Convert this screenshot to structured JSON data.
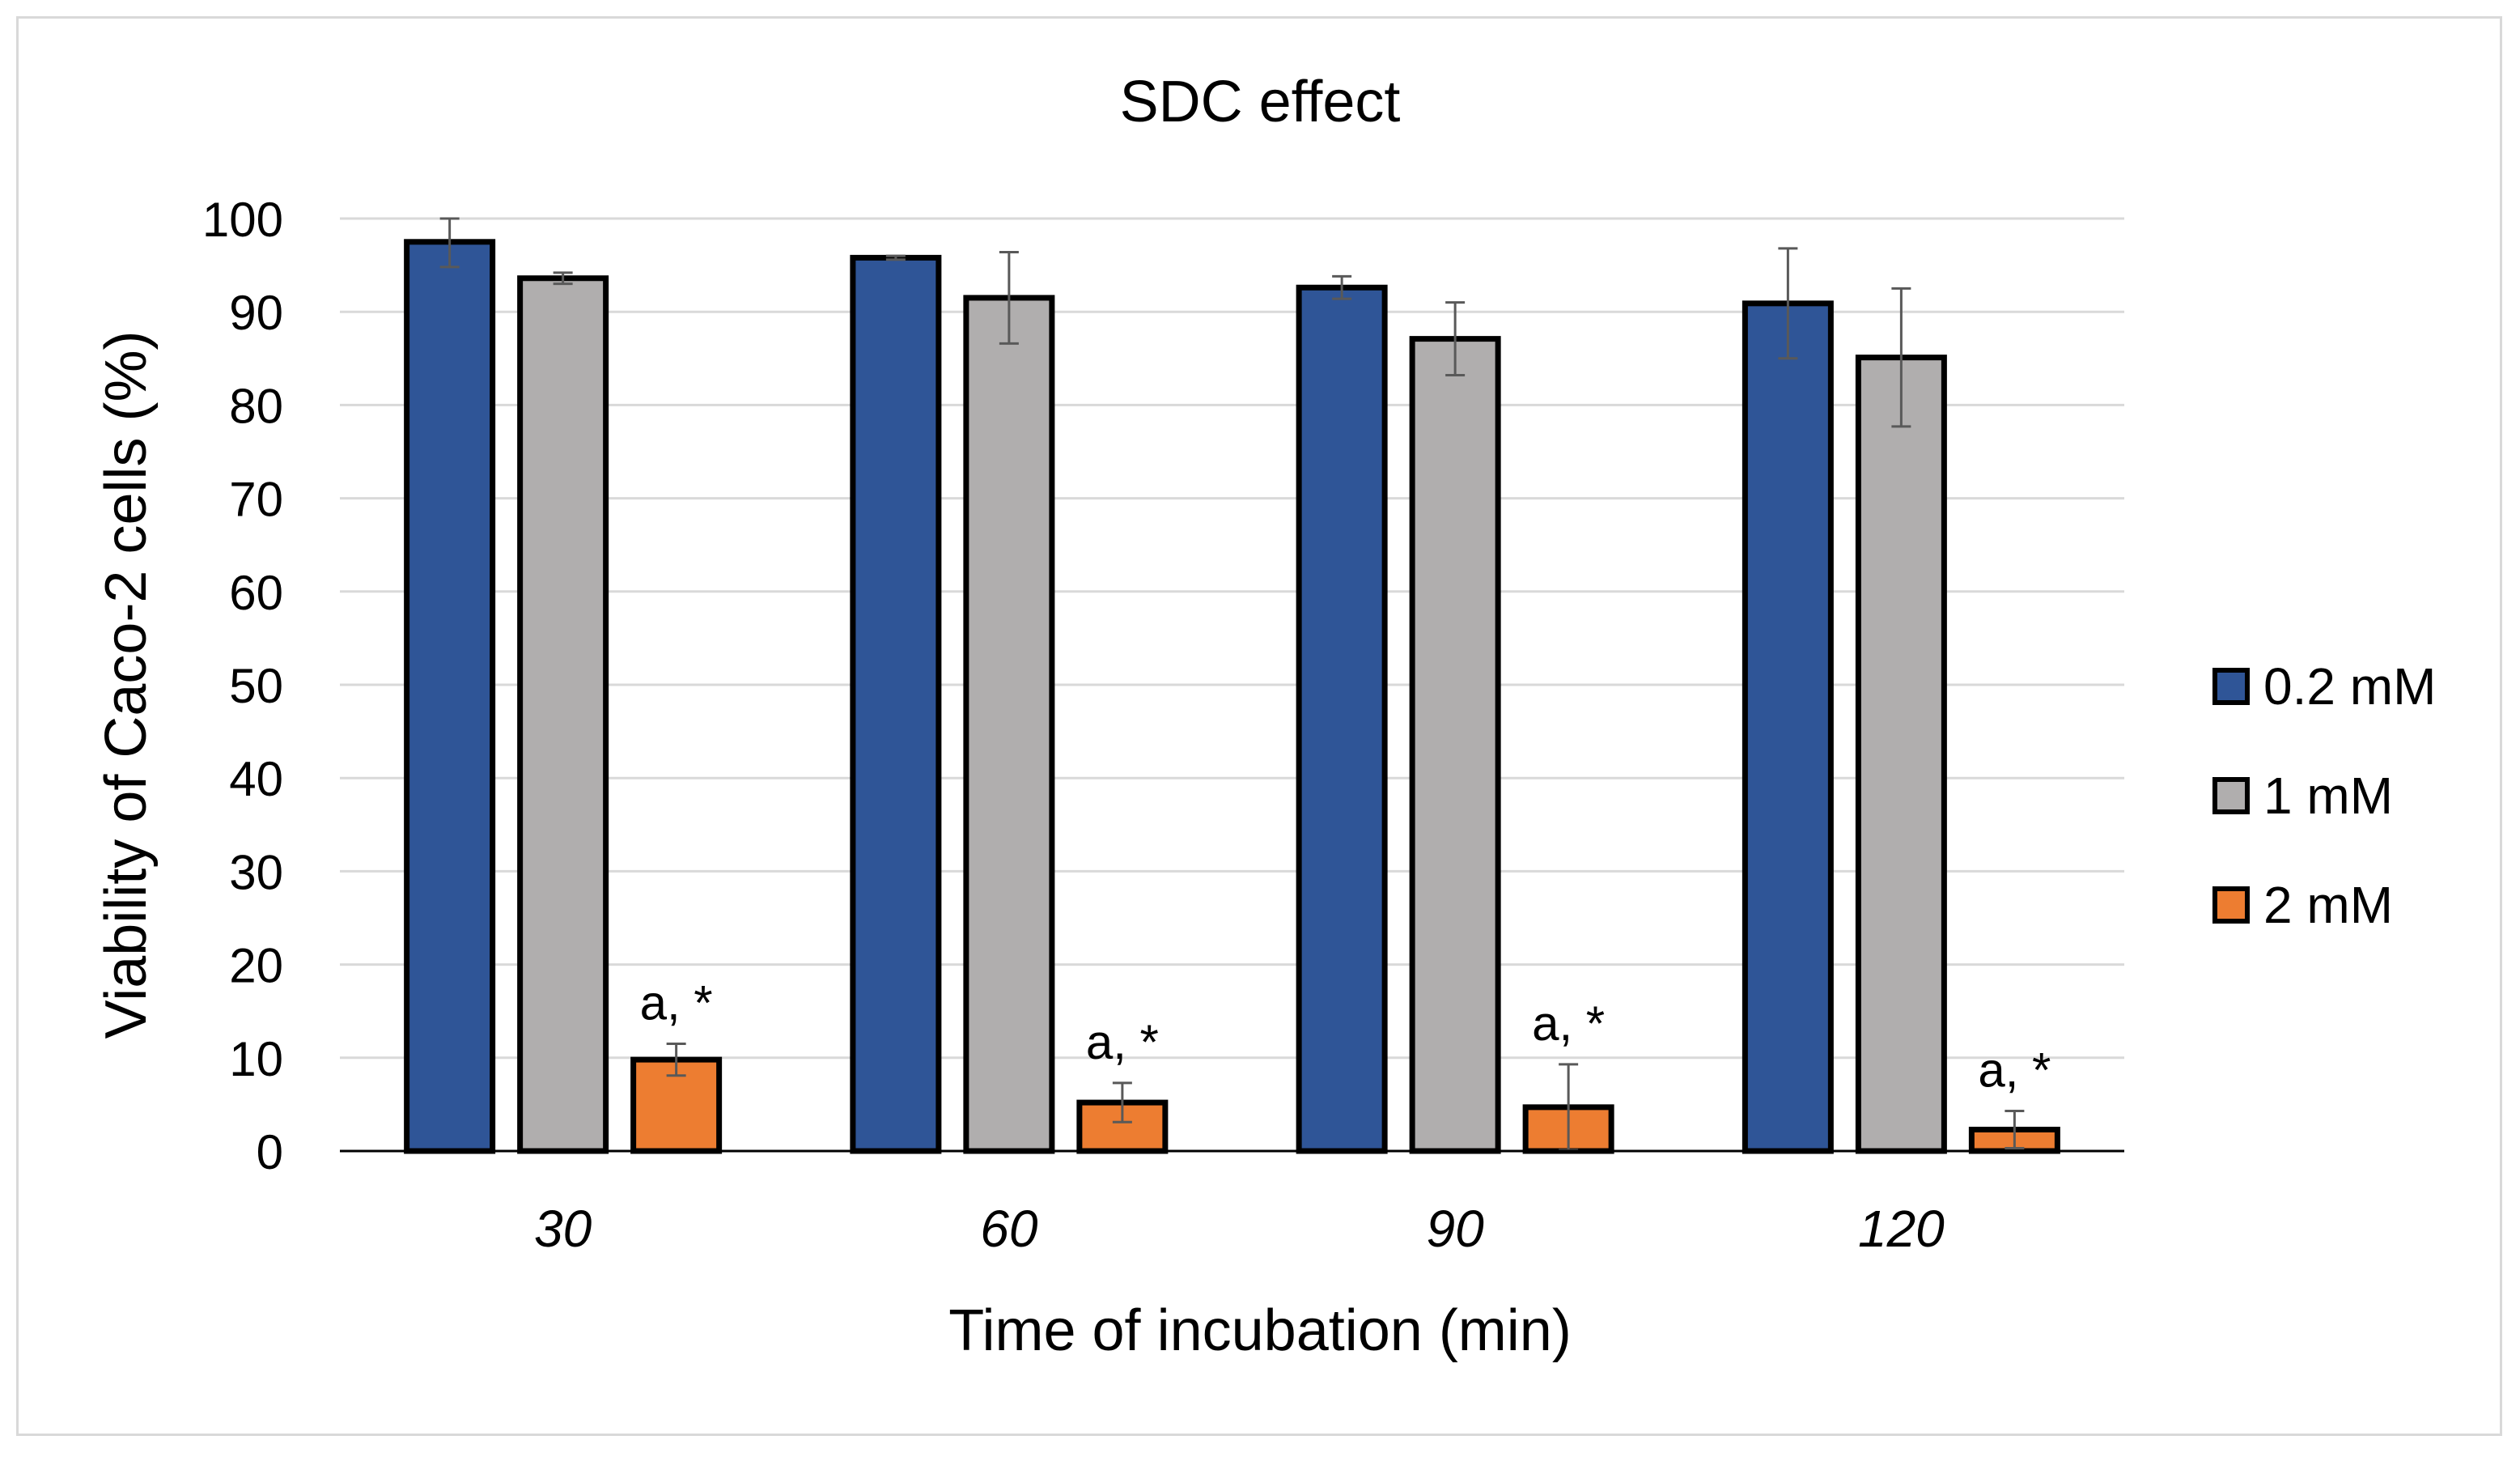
{
  "chart_data": {
    "type": "bar",
    "title": "SDC effect",
    "xlabel": "Time of incubation (min)",
    "ylabel": "Viability of Caco-2 cells (%)",
    "ylim": [
      0,
      100
    ],
    "yticks": [
      0,
      10,
      20,
      30,
      40,
      50,
      60,
      70,
      80,
      90,
      100
    ],
    "grid": true,
    "legend_position": "right",
    "categories": [
      "30",
      "60",
      "90",
      "120"
    ],
    "series": [
      {
        "name": "0.2 mM",
        "color": "#2f5597",
        "values": [
          97.5,
          95.8,
          92.6,
          90.9
        ],
        "errors": [
          2.7,
          0.2,
          1.2,
          5.9
        ]
      },
      {
        "name": "1 mM",
        "color": "#b0aeae",
        "values": [
          93.6,
          91.5,
          87.1,
          85.1
        ],
        "errors": [
          0.6,
          4.9,
          3.9,
          7.4
        ]
      },
      {
        "name": "2 mM",
        "color": "#ed7d31",
        "values": [
          9.8,
          5.2,
          4.7,
          2.3
        ],
        "errors": [
          1.7,
          2.1,
          4.6,
          2.0
        ]
      }
    ],
    "annotations": [
      "a, *",
      "a, *",
      "a, *",
      "a, *"
    ]
  }
}
